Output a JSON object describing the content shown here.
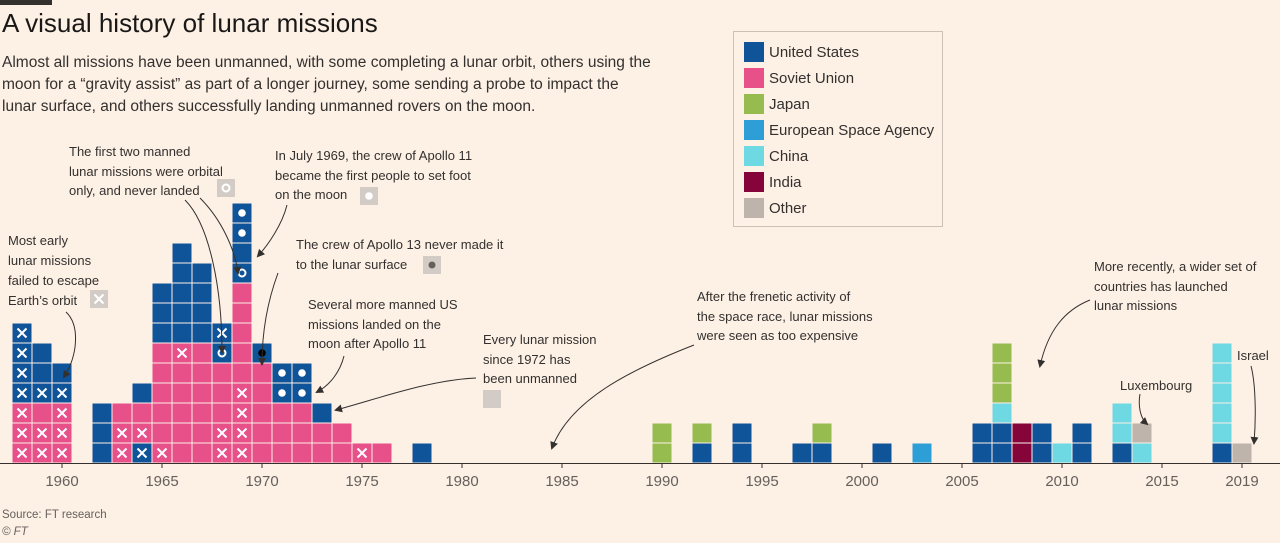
{
  "title": "A visual history of lunar missions",
  "subtitle": "Almost all missions have been unmanned, with some completing a lunar orbit, others using the moon for a “gravity assist” as part of a longer journey, some sending a probe to impact the lunar surface, and others successfully landing unmanned rovers on the moon.",
  "source": "Source: FT research",
  "copyright": "© FT",
  "colors": {
    "US": "#0f5499",
    "USSR": "#e8508a",
    "Japan": "#96bc4f",
    "ESA": "#2d9fd6",
    "China": "#6ed8e3",
    "India": "#85053a",
    "Other": "#bfb4ab",
    "manned_marker": "#ffffff",
    "apollo13_marker": "#000000"
  },
  "legend": [
    {
      "key": "US",
      "label": "United States"
    },
    {
      "key": "USSR",
      "label": "Soviet Union"
    },
    {
      "key": "Japan",
      "label": "Japan"
    },
    {
      "key": "ESA",
      "label": "European Space Agency"
    },
    {
      "key": "China",
      "label": "China"
    },
    {
      "key": "India",
      "label": "India"
    },
    {
      "key": "Other",
      "label": "Other"
    }
  ],
  "annotations": {
    "early_failures": [
      "Most early",
      "lunar missions",
      "failed to escape",
      "Earth’s orbit"
    ],
    "manned_orbital": [
      "The first two manned",
      "lunar missions were orbital",
      "only, and never landed"
    ],
    "apollo11": [
      "In July 1969, the crew of Apollo 11",
      "became the first people to set foot",
      "on the moon"
    ],
    "apollo13": [
      "The crew of Apollo 13 never made it",
      "to the lunar surface"
    ],
    "more_manned": [
      "Several more manned US",
      "missions landed on the",
      "moon after Apollo 11"
    ],
    "unmanned_1972": [
      "Every lunar mission",
      "since 1972 has",
      "been unmanned"
    ],
    "expensive": [
      "After the frenetic activity of",
      "the space race, lunar missions",
      "were seen as too expensive"
    ],
    "wider_set": [
      "More recently, a wider set of",
      "countries has launched",
      "lunar missions"
    ],
    "luxembourg": "Luxembourg",
    "israel": "Israel"
  },
  "chart_data": {
    "type": "bar",
    "title": "A visual history of lunar missions",
    "x_unit": "year",
    "xlim": [
      1958,
      2019
    ],
    "x_ticks": [
      1960,
      1965,
      1970,
      1975,
      1980,
      1985,
      1990,
      1995,
      2000,
      2005,
      2010,
      2015,
      2019
    ],
    "note": "Stacked unit squares, bottom to top. Codes: US, USSR, Japan, ESA, China, India, Other. Suffix :F = failed to escape Earth's orbit, :M = manned orbital, :L = manned landing, :A13 = Apollo 13",
    "years": [
      {
        "year": 1958,
        "missions": [
          "USSR:F",
          "USSR:F",
          "USSR:F",
          "US:F",
          "US:F",
          "US:F",
          "US:F"
        ]
      },
      {
        "year": 1959,
        "missions": [
          "USSR:F",
          "USSR:F",
          "USSR",
          "US:F",
          "US",
          "US"
        ]
      },
      {
        "year": 1960,
        "missions": [
          "USSR:F",
          "USSR:F",
          "USSR:F",
          "US:F",
          "US"
        ]
      },
      {
        "year": 1962,
        "missions": [
          "US",
          "US",
          "US"
        ]
      },
      {
        "year": 1963,
        "missions": [
          "USSR:F",
          "USSR:F",
          "USSR"
        ]
      },
      {
        "year": 1964,
        "missions": [
          "US:F",
          "USSR:F",
          "USSR",
          "US"
        ]
      },
      {
        "year": 1965,
        "missions": [
          "USSR:F",
          "USSR",
          "USSR",
          "USSR",
          "USSR",
          "USSR",
          "US",
          "US",
          "US"
        ]
      },
      {
        "year": 1966,
        "missions": [
          "USSR",
          "USSR",
          "USSR",
          "USSR",
          "USSR",
          "USSR:F",
          "US",
          "US",
          "US",
          "US",
          "US"
        ]
      },
      {
        "year": 1967,
        "missions": [
          "USSR",
          "USSR",
          "USSR",
          "USSR",
          "USSR",
          "USSR",
          "US",
          "US",
          "US",
          "US"
        ]
      },
      {
        "year": 1968,
        "missions": [
          "USSR:F",
          "USSR:F",
          "USSR",
          "USSR",
          "USSR",
          "US:M",
          "US:F"
        ]
      },
      {
        "year": 1969,
        "missions": [
          "USSR:F",
          "USSR:F",
          "USSR:F",
          "USSR:F",
          "USSR",
          "USSR",
          "USSR",
          "USSR",
          "USSR",
          "US:M",
          "US",
          "US:L",
          "US:L"
        ]
      },
      {
        "year": 1970,
        "missions": [
          "USSR",
          "USSR",
          "USSR",
          "USSR",
          "USSR",
          "US:A13"
        ]
      },
      {
        "year": 1971,
        "missions": [
          "USSR",
          "USSR",
          "USSR",
          "US:L",
          "US:L"
        ]
      },
      {
        "year": 1972,
        "missions": [
          "USSR",
          "USSR",
          "USSR",
          "US:L",
          "US:L"
        ]
      },
      {
        "year": 1973,
        "missions": [
          "USSR",
          "USSR",
          "US"
        ]
      },
      {
        "year": 1974,
        "missions": [
          "USSR",
          "USSR"
        ]
      },
      {
        "year": 1975,
        "missions": [
          "USSR:F"
        ]
      },
      {
        "year": 1976,
        "missions": [
          "USSR"
        ]
      },
      {
        "year": 1978,
        "missions": [
          "US"
        ]
      },
      {
        "year": 1990,
        "missions": [
          "Japan",
          "Japan"
        ]
      },
      {
        "year": 1992,
        "missions": [
          "US",
          "Japan"
        ]
      },
      {
        "year": 1994,
        "missions": [
          "US",
          "US"
        ]
      },
      {
        "year": 1997,
        "missions": [
          "US"
        ]
      },
      {
        "year": 1998,
        "missions": [
          "US",
          "Japan"
        ]
      },
      {
        "year": 2001,
        "missions": [
          "US"
        ]
      },
      {
        "year": 2003,
        "missions": [
          "ESA"
        ]
      },
      {
        "year": 2006,
        "missions": [
          "US",
          "US"
        ]
      },
      {
        "year": 2007,
        "missions": [
          "US",
          "US",
          "China",
          "Japan",
          "Japan",
          "Japan"
        ]
      },
      {
        "year": 2008,
        "missions": [
          "India",
          "India"
        ]
      },
      {
        "year": 2009,
        "missions": [
          "US",
          "US"
        ]
      },
      {
        "year": 2010,
        "missions": [
          "China"
        ]
      },
      {
        "year": 2011,
        "missions": [
          "US",
          "US"
        ]
      },
      {
        "year": 2013,
        "missions": [
          "US",
          "China",
          "China"
        ]
      },
      {
        "year": 2014,
        "missions": [
          "China",
          "Other"
        ]
      },
      {
        "year": 2018,
        "missions": [
          "US",
          "China",
          "China",
          "China",
          "China",
          "China"
        ]
      },
      {
        "year": 2019,
        "missions": [
          "Other"
        ]
      }
    ]
  }
}
